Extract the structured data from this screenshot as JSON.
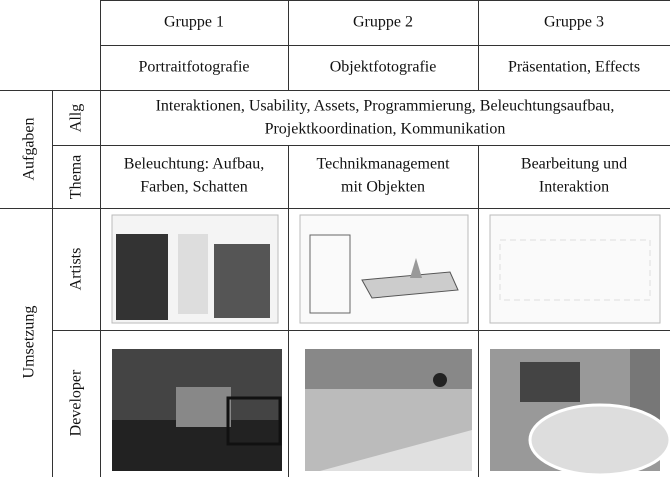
{
  "table": {
    "header": {
      "groups": [
        "Gruppe 1",
        "Gruppe 2",
        "Gruppe 3"
      ],
      "topics": [
        "Portraitfotografie",
        "Objektfotografie",
        "Präsentation, Effects"
      ]
    },
    "sections": [
      {
        "label": "Aufgaben",
        "rows": [
          {
            "label": "Allg",
            "lines": [
              "Interaktionen, Usability, Assets, Programmierung, Beleuchtungsaufbau,",
              "Projektkoordination, Kommunikation"
            ]
          },
          {
            "label": "Thema",
            "cells": [
              [
                "Beleuchtung: Aufbau,",
                "Farben, Schatten"
              ],
              [
                "Technikmanagement",
                "mit Objekten"
              ],
              [
                "Bearbeitung und",
                "Interaktion"
              ]
            ]
          }
        ]
      },
      {
        "label": "Umsetzung",
        "rows": [
          {
            "label": "Artists"
          },
          {
            "label": "Developer"
          }
        ]
      }
    ]
  }
}
